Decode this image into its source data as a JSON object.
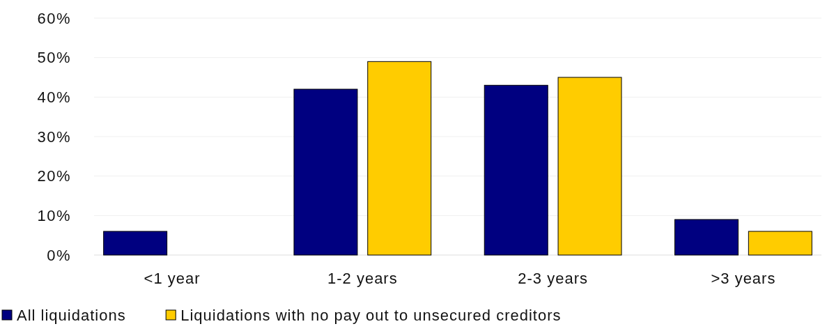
{
  "chart_data": {
    "type": "bar",
    "categories": [
      "<1 year",
      "1-2 years",
      "2-3 years",
      ">3 years"
    ],
    "series": [
      {
        "name": "All liquidations",
        "color": "#000080",
        "values": [
          6,
          42,
          43,
          9
        ]
      },
      {
        "name": "Liquidations with no pay out to unsecured creditors",
        "color": "#ffcc00",
        "values": [
          null,
          49,
          45,
          6
        ]
      }
    ],
    "ylim": [
      0,
      60
    ],
    "yticks": [
      {
        "value": 0,
        "label": "0%"
      },
      {
        "value": 10,
        "label": "10%"
      },
      {
        "value": 20,
        "label": "20%"
      },
      {
        "value": 30,
        "label": "30%"
      },
      {
        "value": 40,
        "label": "40%"
      },
      {
        "value": 50,
        "label": "50%"
      },
      {
        "value": 60,
        "label": "60%"
      }
    ],
    "grid": "y",
    "legend": "bottom"
  }
}
